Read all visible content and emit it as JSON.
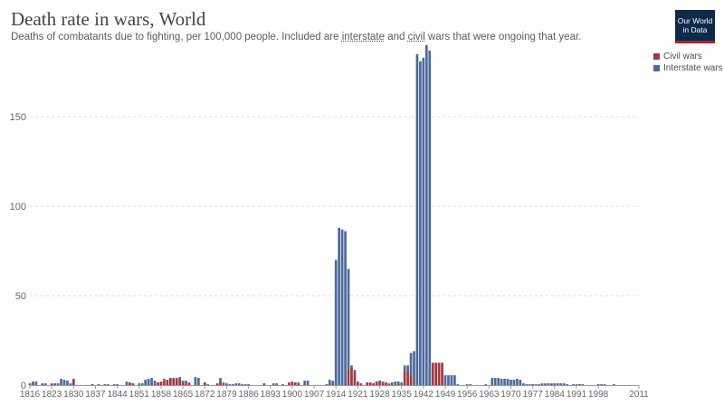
{
  "header": {
    "title": "Death rate in wars, World",
    "subtitle_parts": [
      "Deaths of combatants due to fighting, per 100,000 people. Included are ",
      "interstate",
      " and ",
      "civil",
      " wars that were ongoing that year."
    ],
    "logo_line1": "Our World",
    "logo_line2": "in Data"
  },
  "colors": {
    "civil": "#a2383f",
    "interstate": "#4c6a9c",
    "grid": "#dddddd",
    "axis": "#9a9a9a",
    "tick_text": "#666666"
  },
  "chart_data": {
    "type": "bar",
    "stacked": true,
    "title": "Death rate in wars, World",
    "xlabel": "",
    "ylabel": "",
    "ylim": [
      0,
      190
    ],
    "xlim": [
      1816,
      2011
    ],
    "y_ticks": [
      0,
      50,
      100,
      150
    ],
    "x_ticks": [
      1816,
      1823,
      1830,
      1837,
      1844,
      1851,
      1858,
      1865,
      1872,
      1879,
      1886,
      1893,
      1900,
      1907,
      1914,
      1921,
      1928,
      1935,
      1942,
      1949,
      1956,
      1963,
      1970,
      1977,
      1984,
      1991,
      1998,
      2011
    ],
    "grid": true,
    "legend_position": "top-right",
    "series": [
      {
        "name": "Civil wars",
        "color": "#a2383f"
      },
      {
        "name": "Interstate wars",
        "color": "#4c6a9c"
      }
    ],
    "points": [
      {
        "x": 1816,
        "civil": 0,
        "interstate": 1
      },
      {
        "x": 1817,
        "civil": 0,
        "interstate": 2
      },
      {
        "x": 1818,
        "civil": 0,
        "interstate": 2
      },
      {
        "x": 1820,
        "civil": 0.5,
        "interstate": 0.5
      },
      {
        "x": 1821,
        "civil": 0,
        "interstate": 1
      },
      {
        "x": 1823,
        "civil": 0.5,
        "interstate": 0.5
      },
      {
        "x": 1824,
        "civil": 0,
        "interstate": 1
      },
      {
        "x": 1825,
        "civil": 0,
        "interstate": 1
      },
      {
        "x": 1826,
        "civil": 0,
        "interstate": 3.5
      },
      {
        "x": 1827,
        "civil": 0,
        "interstate": 3
      },
      {
        "x": 1828,
        "civil": 0,
        "interstate": 2.5
      },
      {
        "x": 1829,
        "civil": 0,
        "interstate": 1
      },
      {
        "x": 1830,
        "civil": 3.5,
        "interstate": 0
      },
      {
        "x": 1836,
        "civil": 0.5,
        "interstate": 0
      },
      {
        "x": 1838,
        "civil": 0,
        "interstate": 0.5
      },
      {
        "x": 1840,
        "civil": 0,
        "interstate": 0.5
      },
      {
        "x": 1841,
        "civil": 0,
        "interstate": 0.5
      },
      {
        "x": 1843,
        "civil": 0,
        "interstate": 0.5
      },
      {
        "x": 1844,
        "civil": 0,
        "interstate": 0.5
      },
      {
        "x": 1847,
        "civil": 0,
        "interstate": 2
      },
      {
        "x": 1848,
        "civil": 1.5,
        "interstate": 0
      },
      {
        "x": 1849,
        "civil": 1,
        "interstate": 0
      },
      {
        "x": 1851,
        "civil": 0,
        "interstate": 1
      },
      {
        "x": 1852,
        "civil": 0,
        "interstate": 1
      },
      {
        "x": 1853,
        "civil": 0,
        "interstate": 3
      },
      {
        "x": 1854,
        "civil": 0,
        "interstate": 3.5
      },
      {
        "x": 1855,
        "civil": 0,
        "interstate": 4
      },
      {
        "x": 1856,
        "civil": 0,
        "interstate": 2.5
      },
      {
        "x": 1857,
        "civil": 1.5,
        "interstate": 0
      },
      {
        "x": 1858,
        "civil": 2,
        "interstate": 0
      },
      {
        "x": 1859,
        "civil": 2.5,
        "interstate": 1
      },
      {
        "x": 1860,
        "civil": 3,
        "interstate": 0
      },
      {
        "x": 1861,
        "civil": 4,
        "interstate": 0
      },
      {
        "x": 1862,
        "civil": 4,
        "interstate": 0
      },
      {
        "x": 1863,
        "civil": 3.5,
        "interstate": 0.5
      },
      {
        "x": 1864,
        "civil": 3.5,
        "interstate": 1
      },
      {
        "x": 1865,
        "civil": 1.5,
        "interstate": 1
      },
      {
        "x": 1866,
        "civil": 0.5,
        "interstate": 2
      },
      {
        "x": 1867,
        "civil": 0.5,
        "interstate": 1
      },
      {
        "x": 1869,
        "civil": 0,
        "interstate": 4.5
      },
      {
        "x": 1870,
        "civil": 0,
        "interstate": 4
      },
      {
        "x": 1872,
        "civil": 1.5,
        "interstate": 0
      },
      {
        "x": 1873,
        "civil": 0,
        "interstate": 0.5
      },
      {
        "x": 1876,
        "civil": 1,
        "interstate": 0
      },
      {
        "x": 1877,
        "civil": 2,
        "interstate": 2
      },
      {
        "x": 1878,
        "civil": 0.5,
        "interstate": 1
      },
      {
        "x": 1879,
        "civil": 0,
        "interstate": 1
      },
      {
        "x": 1880,
        "civil": 0,
        "interstate": 0.5
      },
      {
        "x": 1881,
        "civil": 0,
        "interstate": 0.5
      },
      {
        "x": 1882,
        "civil": 0,
        "interstate": 1
      },
      {
        "x": 1883,
        "civil": 0,
        "interstate": 1
      },
      {
        "x": 1884,
        "civil": 0,
        "interstate": 0.5
      },
      {
        "x": 1885,
        "civil": 0,
        "interstate": 0.5
      },
      {
        "x": 1886,
        "civil": 0.5,
        "interstate": 0
      },
      {
        "x": 1891,
        "civil": 1,
        "interstate": 0
      },
      {
        "x": 1894,
        "civil": 0,
        "interstate": 1
      },
      {
        "x": 1895,
        "civil": 0,
        "interstate": 1
      },
      {
        "x": 1897,
        "civil": 0,
        "interstate": 0.5
      },
      {
        "x": 1899,
        "civil": 1.5,
        "interstate": 0
      },
      {
        "x": 1900,
        "civil": 2,
        "interstate": 0
      },
      {
        "x": 1901,
        "civil": 1.5,
        "interstate": 0
      },
      {
        "x": 1902,
        "civil": 0.5,
        "interstate": 1
      },
      {
        "x": 1904,
        "civil": 0,
        "interstate": 2.5
      },
      {
        "x": 1905,
        "civil": 0,
        "interstate": 2.5
      },
      {
        "x": 1911,
        "civil": 0,
        "interstate": 0.5
      },
      {
        "x": 1912,
        "civil": 0,
        "interstate": 3
      },
      {
        "x": 1913,
        "civil": 0.5,
        "interstate": 2
      },
      {
        "x": 1914,
        "civil": 0,
        "interstate": 70
      },
      {
        "x": 1915,
        "civil": 0,
        "interstate": 88
      },
      {
        "x": 1916,
        "civil": 0,
        "interstate": 87
      },
      {
        "x": 1917,
        "civil": 0,
        "interstate": 86
      },
      {
        "x": 1918,
        "civil": 9,
        "interstate": 56
      },
      {
        "x": 1919,
        "civil": 10,
        "interstate": 1
      },
      {
        "x": 1920,
        "civil": 7,
        "interstate": 1.5
      },
      {
        "x": 1921,
        "civil": 1,
        "interstate": 1
      },
      {
        "x": 1922,
        "civil": 1,
        "interstate": 0
      },
      {
        "x": 1924,
        "civil": 1.5,
        "interstate": 0
      },
      {
        "x": 1925,
        "civil": 1.5,
        "interstate": 0
      },
      {
        "x": 1926,
        "civil": 1,
        "interstate": 0
      },
      {
        "x": 1927,
        "civil": 2,
        "interstate": 0
      },
      {
        "x": 1928,
        "civil": 2.5,
        "interstate": 0
      },
      {
        "x": 1929,
        "civil": 1,
        "interstate": 1
      },
      {
        "x": 1930,
        "civil": 1.5,
        "interstate": 0
      },
      {
        "x": 1931,
        "civil": 0.5,
        "interstate": 0.5
      },
      {
        "x": 1932,
        "civil": 0,
        "interstate": 1.5
      },
      {
        "x": 1933,
        "civil": 0,
        "interstate": 2
      },
      {
        "x": 1934,
        "civil": 0.5,
        "interstate": 1.5
      },
      {
        "x": 1935,
        "civil": 0,
        "interstate": 1.5
      },
      {
        "x": 1936,
        "civil": 8,
        "interstate": 3
      },
      {
        "x": 1937,
        "civil": 8,
        "interstate": 3
      },
      {
        "x": 1938,
        "civil": 5,
        "interstate": 13
      },
      {
        "x": 1939,
        "civil": 0,
        "interstate": 19
      },
      {
        "x": 1940,
        "civil": 0,
        "interstate": 185
      },
      {
        "x": 1941,
        "civil": 0,
        "interstate": 181
      },
      {
        "x": 1942,
        "civil": 0,
        "interstate": 183
      },
      {
        "x": 1943,
        "civil": 0,
        "interstate": 190
      },
      {
        "x": 1944,
        "civil": 0,
        "interstate": 187
      },
      {
        "x": 1945,
        "civil": 12.5,
        "interstate": 0
      },
      {
        "x": 1946,
        "civil": 12.5,
        "interstate": 0
      },
      {
        "x": 1947,
        "civil": 12.5,
        "interstate": 0
      },
      {
        "x": 1948,
        "civil": 12.5,
        "interstate": 0
      },
      {
        "x": 1949,
        "civil": 0,
        "interstate": 5.5
      },
      {
        "x": 1950,
        "civil": 0,
        "interstate": 5.5
      },
      {
        "x": 1951,
        "civil": 0,
        "interstate": 5.5
      },
      {
        "x": 1952,
        "civil": 0,
        "interstate": 5.5
      },
      {
        "x": 1953,
        "civil": 0,
        "interstate": 0.5
      },
      {
        "x": 1956,
        "civil": 0,
        "interstate": 0.5
      },
      {
        "x": 1957,
        "civil": 0,
        "interstate": 0.5
      },
      {
        "x": 1962,
        "civil": 0,
        "interstate": 0.5
      },
      {
        "x": 1964,
        "civil": 0,
        "interstate": 4
      },
      {
        "x": 1965,
        "civil": 0,
        "interstate": 4
      },
      {
        "x": 1966,
        "civil": 0,
        "interstate": 4
      },
      {
        "x": 1967,
        "civil": 0,
        "interstate": 3.5
      },
      {
        "x": 1968,
        "civil": 0,
        "interstate": 3.5
      },
      {
        "x": 1969,
        "civil": 0,
        "interstate": 3.5
      },
      {
        "x": 1970,
        "civil": 0,
        "interstate": 3
      },
      {
        "x": 1971,
        "civil": 0,
        "interstate": 3
      },
      {
        "x": 1972,
        "civil": 0,
        "interstate": 3.5
      },
      {
        "x": 1973,
        "civil": 0,
        "interstate": 3
      },
      {
        "x": 1974,
        "civil": 0,
        "interstate": 1
      },
      {
        "x": 1975,
        "civil": 0,
        "interstate": 0.5
      },
      {
        "x": 1976,
        "civil": 0,
        "interstate": 0.5
      },
      {
        "x": 1977,
        "civil": 0.5,
        "interstate": 0
      },
      {
        "x": 1978,
        "civil": 0,
        "interstate": 0.5
      },
      {
        "x": 1979,
        "civil": 0,
        "interstate": 0.5
      },
      {
        "x": 1980,
        "civil": 0,
        "interstate": 1
      },
      {
        "x": 1981,
        "civil": 0,
        "interstate": 1
      },
      {
        "x": 1982,
        "civil": 0,
        "interstate": 1
      },
      {
        "x": 1983,
        "civil": 0.5,
        "interstate": 0.5
      },
      {
        "x": 1984,
        "civil": 0,
        "interstate": 1
      },
      {
        "x": 1985,
        "civil": 0,
        "interstate": 1
      },
      {
        "x": 1986,
        "civil": 0,
        "interstate": 1
      },
      {
        "x": 1987,
        "civil": 0,
        "interstate": 1
      },
      {
        "x": 1988,
        "civil": 0,
        "interstate": 0.5
      },
      {
        "x": 1990,
        "civil": 0,
        "interstate": 0.5
      },
      {
        "x": 1991,
        "civil": 0,
        "interstate": 0.5
      },
      {
        "x": 1992,
        "civil": 0.5,
        "interstate": 0
      },
      {
        "x": 1993,
        "civil": 0,
        "interstate": 0.5
      },
      {
        "x": 1998,
        "civil": 0,
        "interstate": 0.5
      },
      {
        "x": 1999,
        "civil": 0,
        "interstate": 0.5
      },
      {
        "x": 2000,
        "civil": 0,
        "interstate": 0.5
      },
      {
        "x": 2003,
        "civil": 0,
        "interstate": 0.5
      }
    ]
  }
}
